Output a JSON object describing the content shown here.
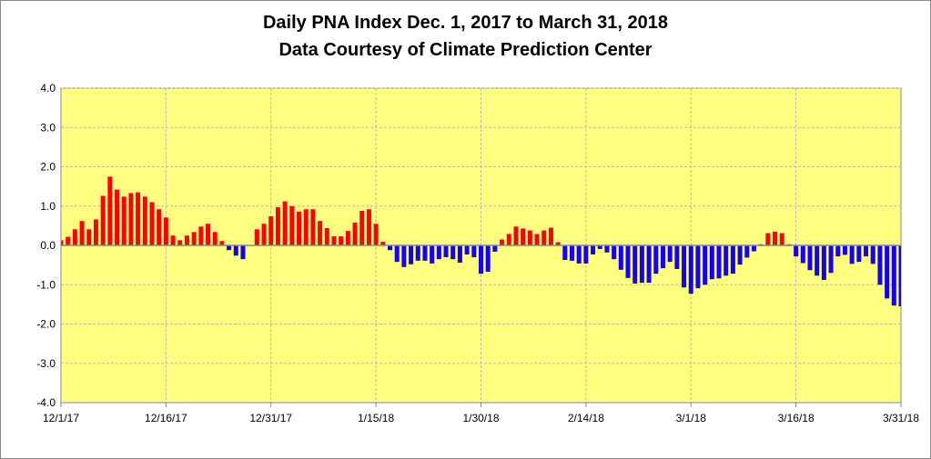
{
  "chart_data": {
    "type": "bar",
    "title": "Daily PNA Index Dec. 1, 2017 to March 31, 2018",
    "subtitle": "Data Courtesy of Climate Prediction Center",
    "xlabel": "",
    "ylabel": "",
    "ylim": [
      -4.0,
      4.0
    ],
    "yticks": [
      "4.0",
      "3.0",
      "2.0",
      "1.0",
      "0.0",
      "-1.0",
      "-2.0",
      "-3.0",
      "-4.0"
    ],
    "ytick_values": [
      4,
      3,
      2,
      1,
      0,
      -1,
      -2,
      -3,
      -4
    ],
    "xtick_labels": [
      "12/1/17",
      "12/16/17",
      "12/31/17",
      "1/15/18",
      "1/30/18",
      "2/14/18",
      "3/1/18",
      "3/16/18",
      "3/31/18"
    ],
    "xtick_interval_days": 15,
    "grid": true,
    "positive_color": "#ff0000",
    "negative_color": "#1400ff",
    "plot_background": "#ffff80",
    "values": [
      0.13,
      0.22,
      0.41,
      0.62,
      0.41,
      0.66,
      1.26,
      1.75,
      1.42,
      1.24,
      1.33,
      1.35,
      1.24,
      1.1,
      0.92,
      0.71,
      0.25,
      0.13,
      0.25,
      0.34,
      0.48,
      0.55,
      0.34,
      0.11,
      -0.12,
      -0.26,
      -0.35,
      0.0,
      0.41,
      0.55,
      0.74,
      0.97,
      1.12,
      1.0,
      0.86,
      0.92,
      0.92,
      0.62,
      0.44,
      0.23,
      0.23,
      0.37,
      0.58,
      0.88,
      0.92,
      0.55,
      0.09,
      -0.12,
      -0.42,
      -0.55,
      -0.48,
      -0.39,
      -0.39,
      -0.46,
      -0.35,
      -0.3,
      -0.35,
      -0.44,
      -0.23,
      -0.3,
      -0.72,
      -0.67,
      -0.16,
      0.15,
      0.29,
      0.48,
      0.43,
      0.38,
      0.29,
      0.38,
      0.45,
      0.08,
      -0.37,
      -0.39,
      -0.46,
      -0.46,
      -0.23,
      -0.09,
      -0.18,
      -0.35,
      -0.62,
      -0.83,
      -0.97,
      -0.95,
      -0.95,
      -0.72,
      -0.58,
      -0.42,
      -0.6,
      -1.07,
      -1.23,
      -1.09,
      -1.0,
      -0.86,
      -0.84,
      -0.77,
      -0.72,
      -0.49,
      -0.31,
      -0.15,
      0.03,
      0.31,
      0.35,
      0.31,
      0.03,
      -0.28,
      -0.45,
      -0.63,
      -0.77,
      -0.88,
      -0.7,
      -0.28,
      -0.24,
      -0.47,
      -0.42,
      -0.28,
      -0.47,
      -1.0,
      -1.35,
      -1.53,
      -1.55
    ]
  }
}
